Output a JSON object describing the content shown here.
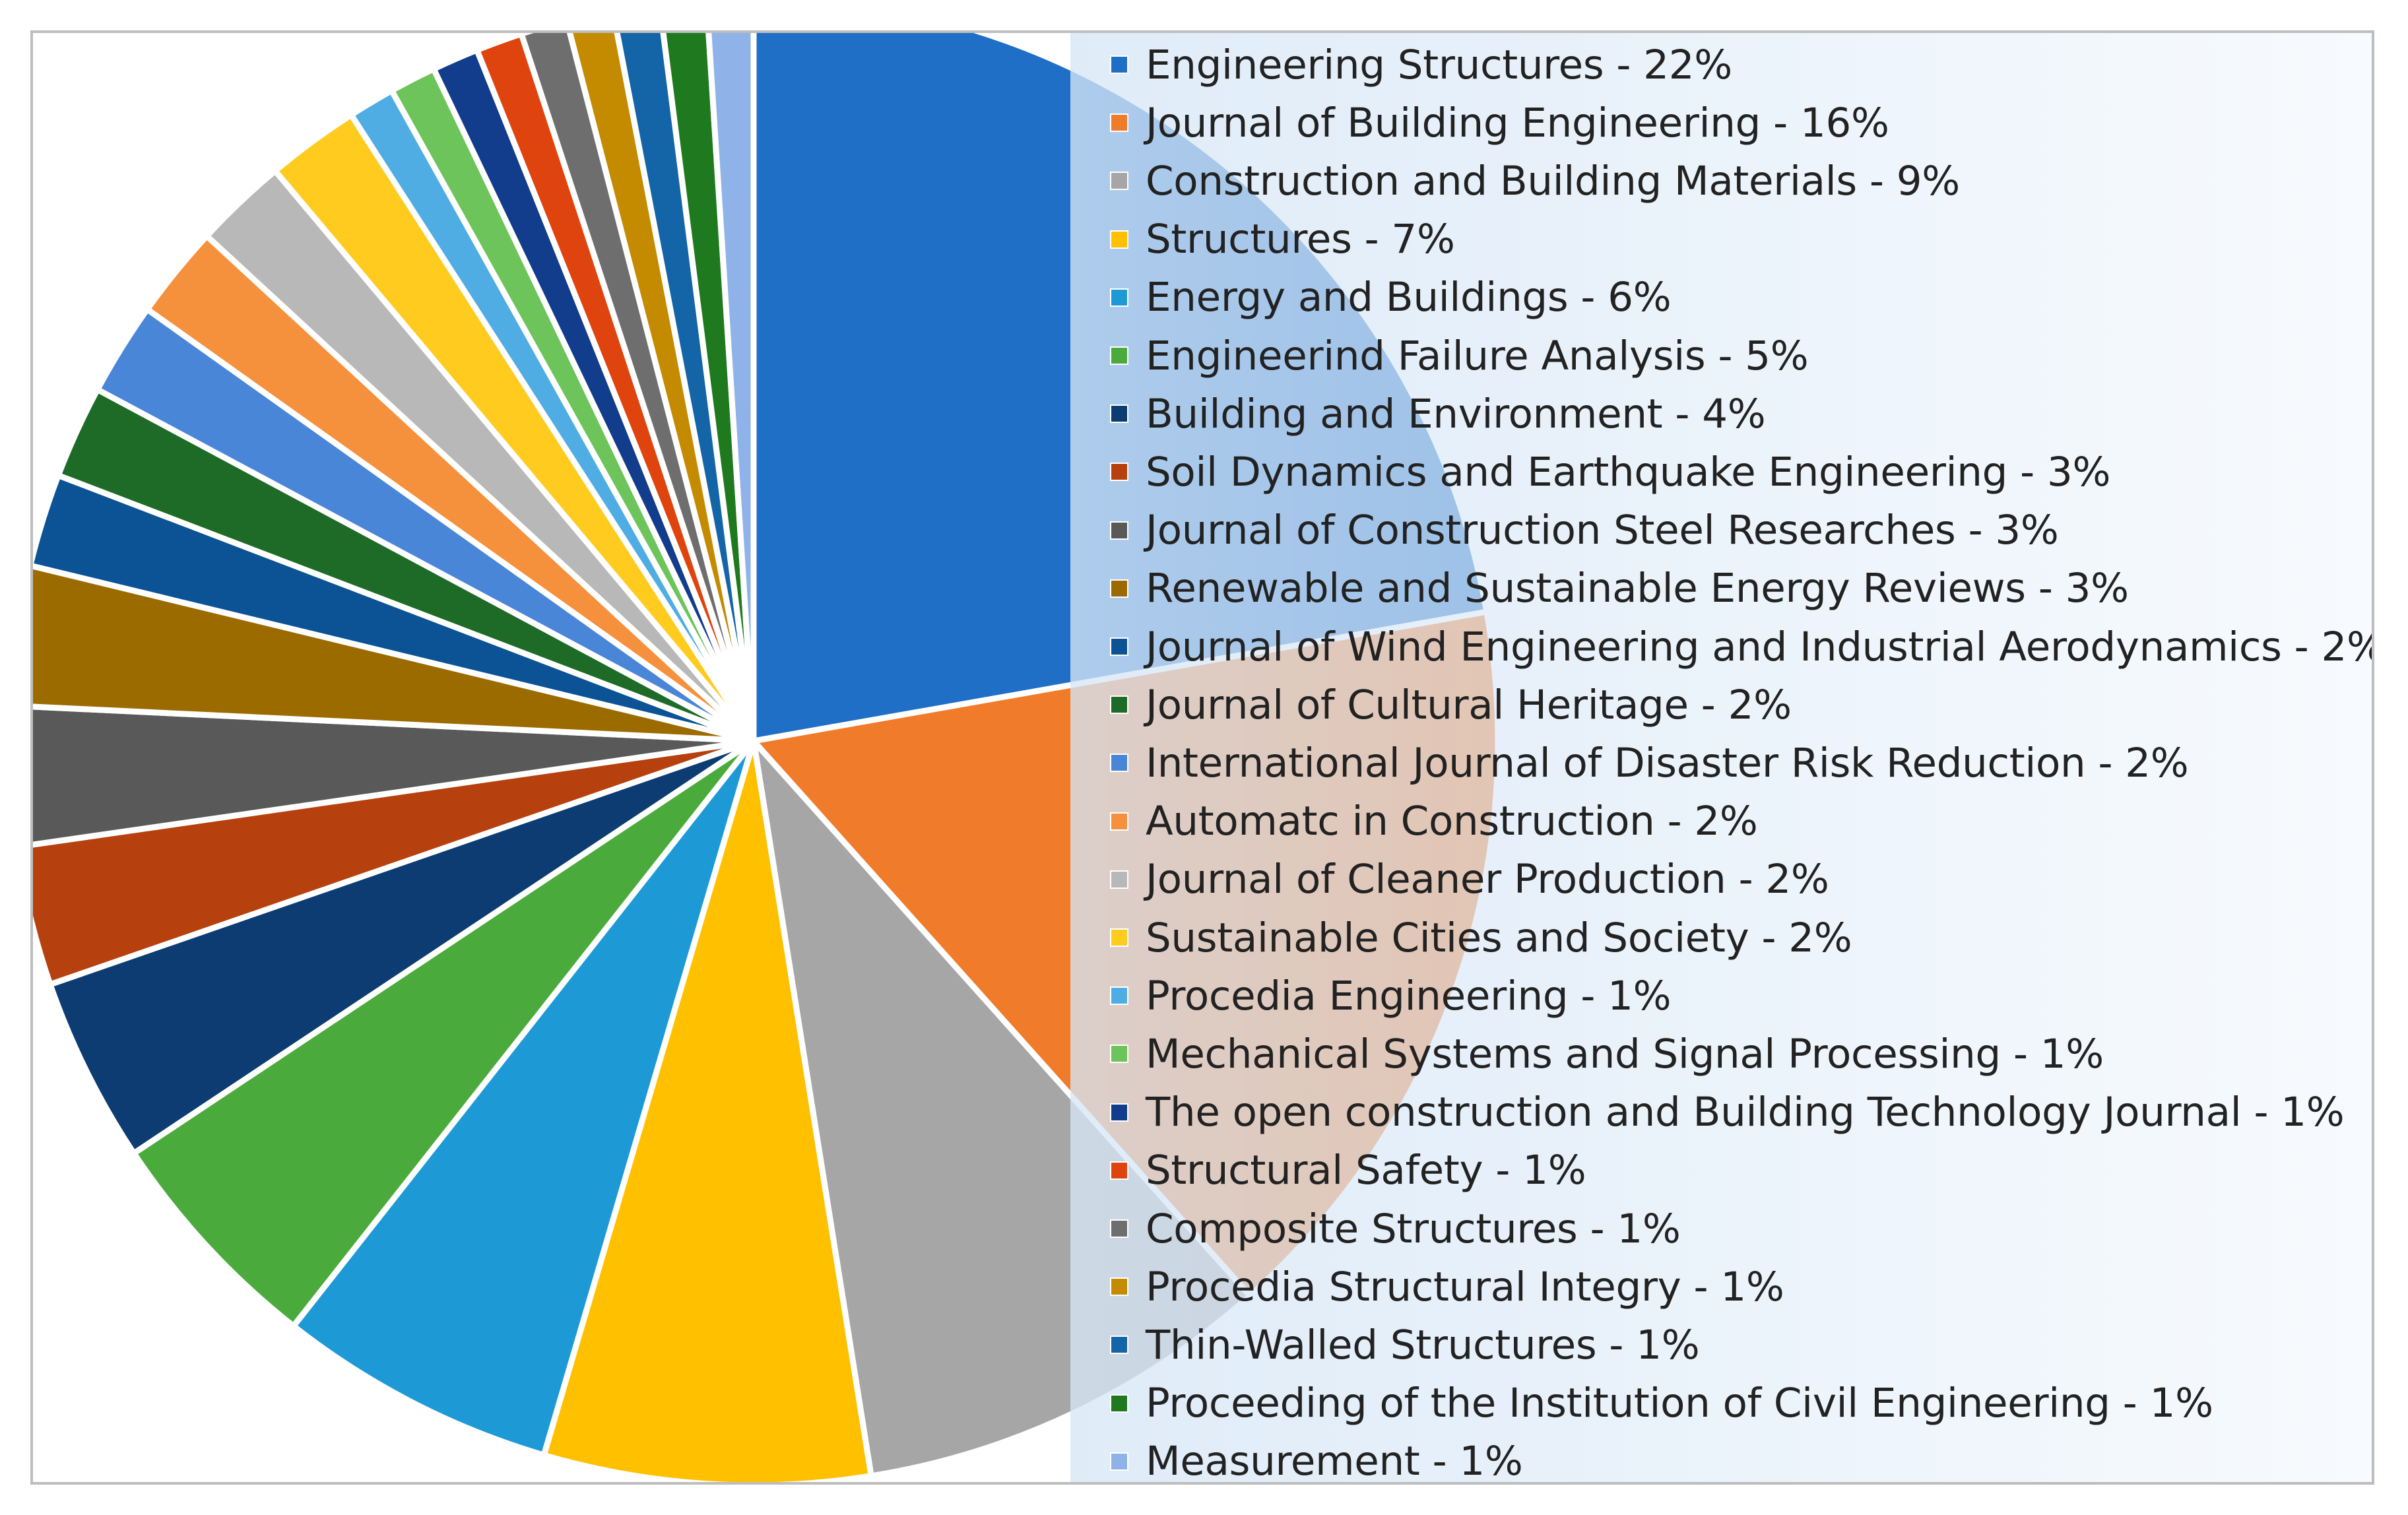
{
  "chart_data": {
    "type": "pie",
    "start_angle": "12 o'clock",
    "direction": "clockwise",
    "legend_position": "right",
    "slices": [
      {
        "label": "Engineering Structures - 22%",
        "value": 22,
        "color": "#1f6fc7"
      },
      {
        "label": "Journal of Building Engineering - 16%",
        "value": 16,
        "color": "#f07b2a"
      },
      {
        "label": "Construction and Building Materials - 9%",
        "value": 9,
        "color": "#a6a6a6"
      },
      {
        "label": "Structures - 7%",
        "value": 7,
        "color": "#ffc000"
      },
      {
        "label": "Energy and Buildings - 6%",
        "value": 6,
        "color": "#1d9ad6"
      },
      {
        "label": "Engineerind Failure Analysis - 5%",
        "value": 5,
        "color": "#4aab3c"
      },
      {
        "label": "Building and Environment - 4%",
        "value": 4,
        "color": "#0d3c73"
      },
      {
        "label": "Soil Dynamics and Earthquake Engineering - 3%",
        "value": 3,
        "color": "#b7410e"
      },
      {
        "label": "Journal of Construction Steel Researches - 3%",
        "value": 3,
        "color": "#595959"
      },
      {
        "label": "Renewable and Sustainable Energy Reviews - 3%",
        "value": 3,
        "color": "#9c6b00"
      },
      {
        "label": "Journal of Wind Engineering and Industrial Aerodynamics - 2%",
        "value": 2,
        "color": "#0b5394"
      },
      {
        "label": "Journal of Cultural Heritage - 2%",
        "value": 2,
        "color": "#1e6b28"
      },
      {
        "label": "International Journal of Disaster Risk Reduction - 2%",
        "value": 2,
        "color": "#4a86d8"
      },
      {
        "label": "Automatc in Construction - 2%",
        "value": 2,
        "color": "#f5903d"
      },
      {
        "label": "Journal of Cleaner Production - 2%",
        "value": 2,
        "color": "#b8b8b8"
      },
      {
        "label": "Sustainable Cities and Society - 2%",
        "value": 2,
        "color": "#ffcb1f"
      },
      {
        "label": "Procedia Engineering - 1%",
        "value": 1,
        "color": "#4fade4"
      },
      {
        "label": "Mechanical Systems and Signal Processing - 1%",
        "value": 1,
        "color": "#6cc45a"
      },
      {
        "label": "The open construction and Building Technology Journal - 1%",
        "value": 1,
        "color": "#123c8c"
      },
      {
        "label": "Structural Safety - 1%",
        "value": 1,
        "color": "#e0440e"
      },
      {
        "label": "Composite Structures - 1%",
        "value": 1,
        "color": "#6e6e6e"
      },
      {
        "label": "Procedia Structural Integry - 1%",
        "value": 1,
        "color": "#c48a00"
      },
      {
        "label": "Thin-Walled Structures - 1%",
        "value": 1,
        "color": "#1464a8"
      },
      {
        "label": "Proceeding of the Institution of Civil Engineering - 1%",
        "value": 1,
        "color": "#1f7a1f"
      },
      {
        "label": "Measurement - 1%",
        "value": 1,
        "color": "#8fb3e8"
      }
    ]
  }
}
